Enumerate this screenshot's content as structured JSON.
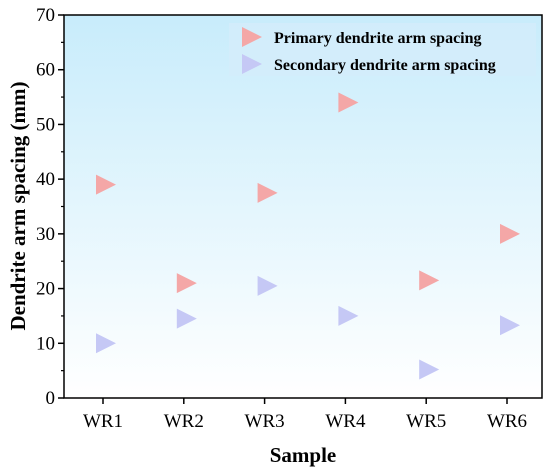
{
  "chart_data": {
    "type": "scatter",
    "xlabel": "Sample",
    "ylabel": "Dendrite arm spacing (mm)",
    "categories": [
      "WR1",
      "WR2",
      "WR3",
      "WR4",
      "WR5",
      "WR6"
    ],
    "ylim": [
      0,
      70
    ],
    "yticks": [
      0,
      10,
      20,
      30,
      40,
      50,
      60,
      70
    ],
    "grid": false,
    "legend_position": "top-right",
    "background": "gradient light-blue to white",
    "series": [
      {
        "name": "Primary dendrite arm spacing",
        "color": "#f4a7a7",
        "marker": "right-triangle",
        "values": [
          39,
          21,
          37.5,
          54,
          21.5,
          30
        ]
      },
      {
        "name": "Secondary dendrite arm spacing",
        "color": "#c5c8f5",
        "marker": "right-triangle",
        "values": [
          10,
          14.5,
          20.5,
          15,
          5.2,
          13.3
        ]
      }
    ]
  }
}
